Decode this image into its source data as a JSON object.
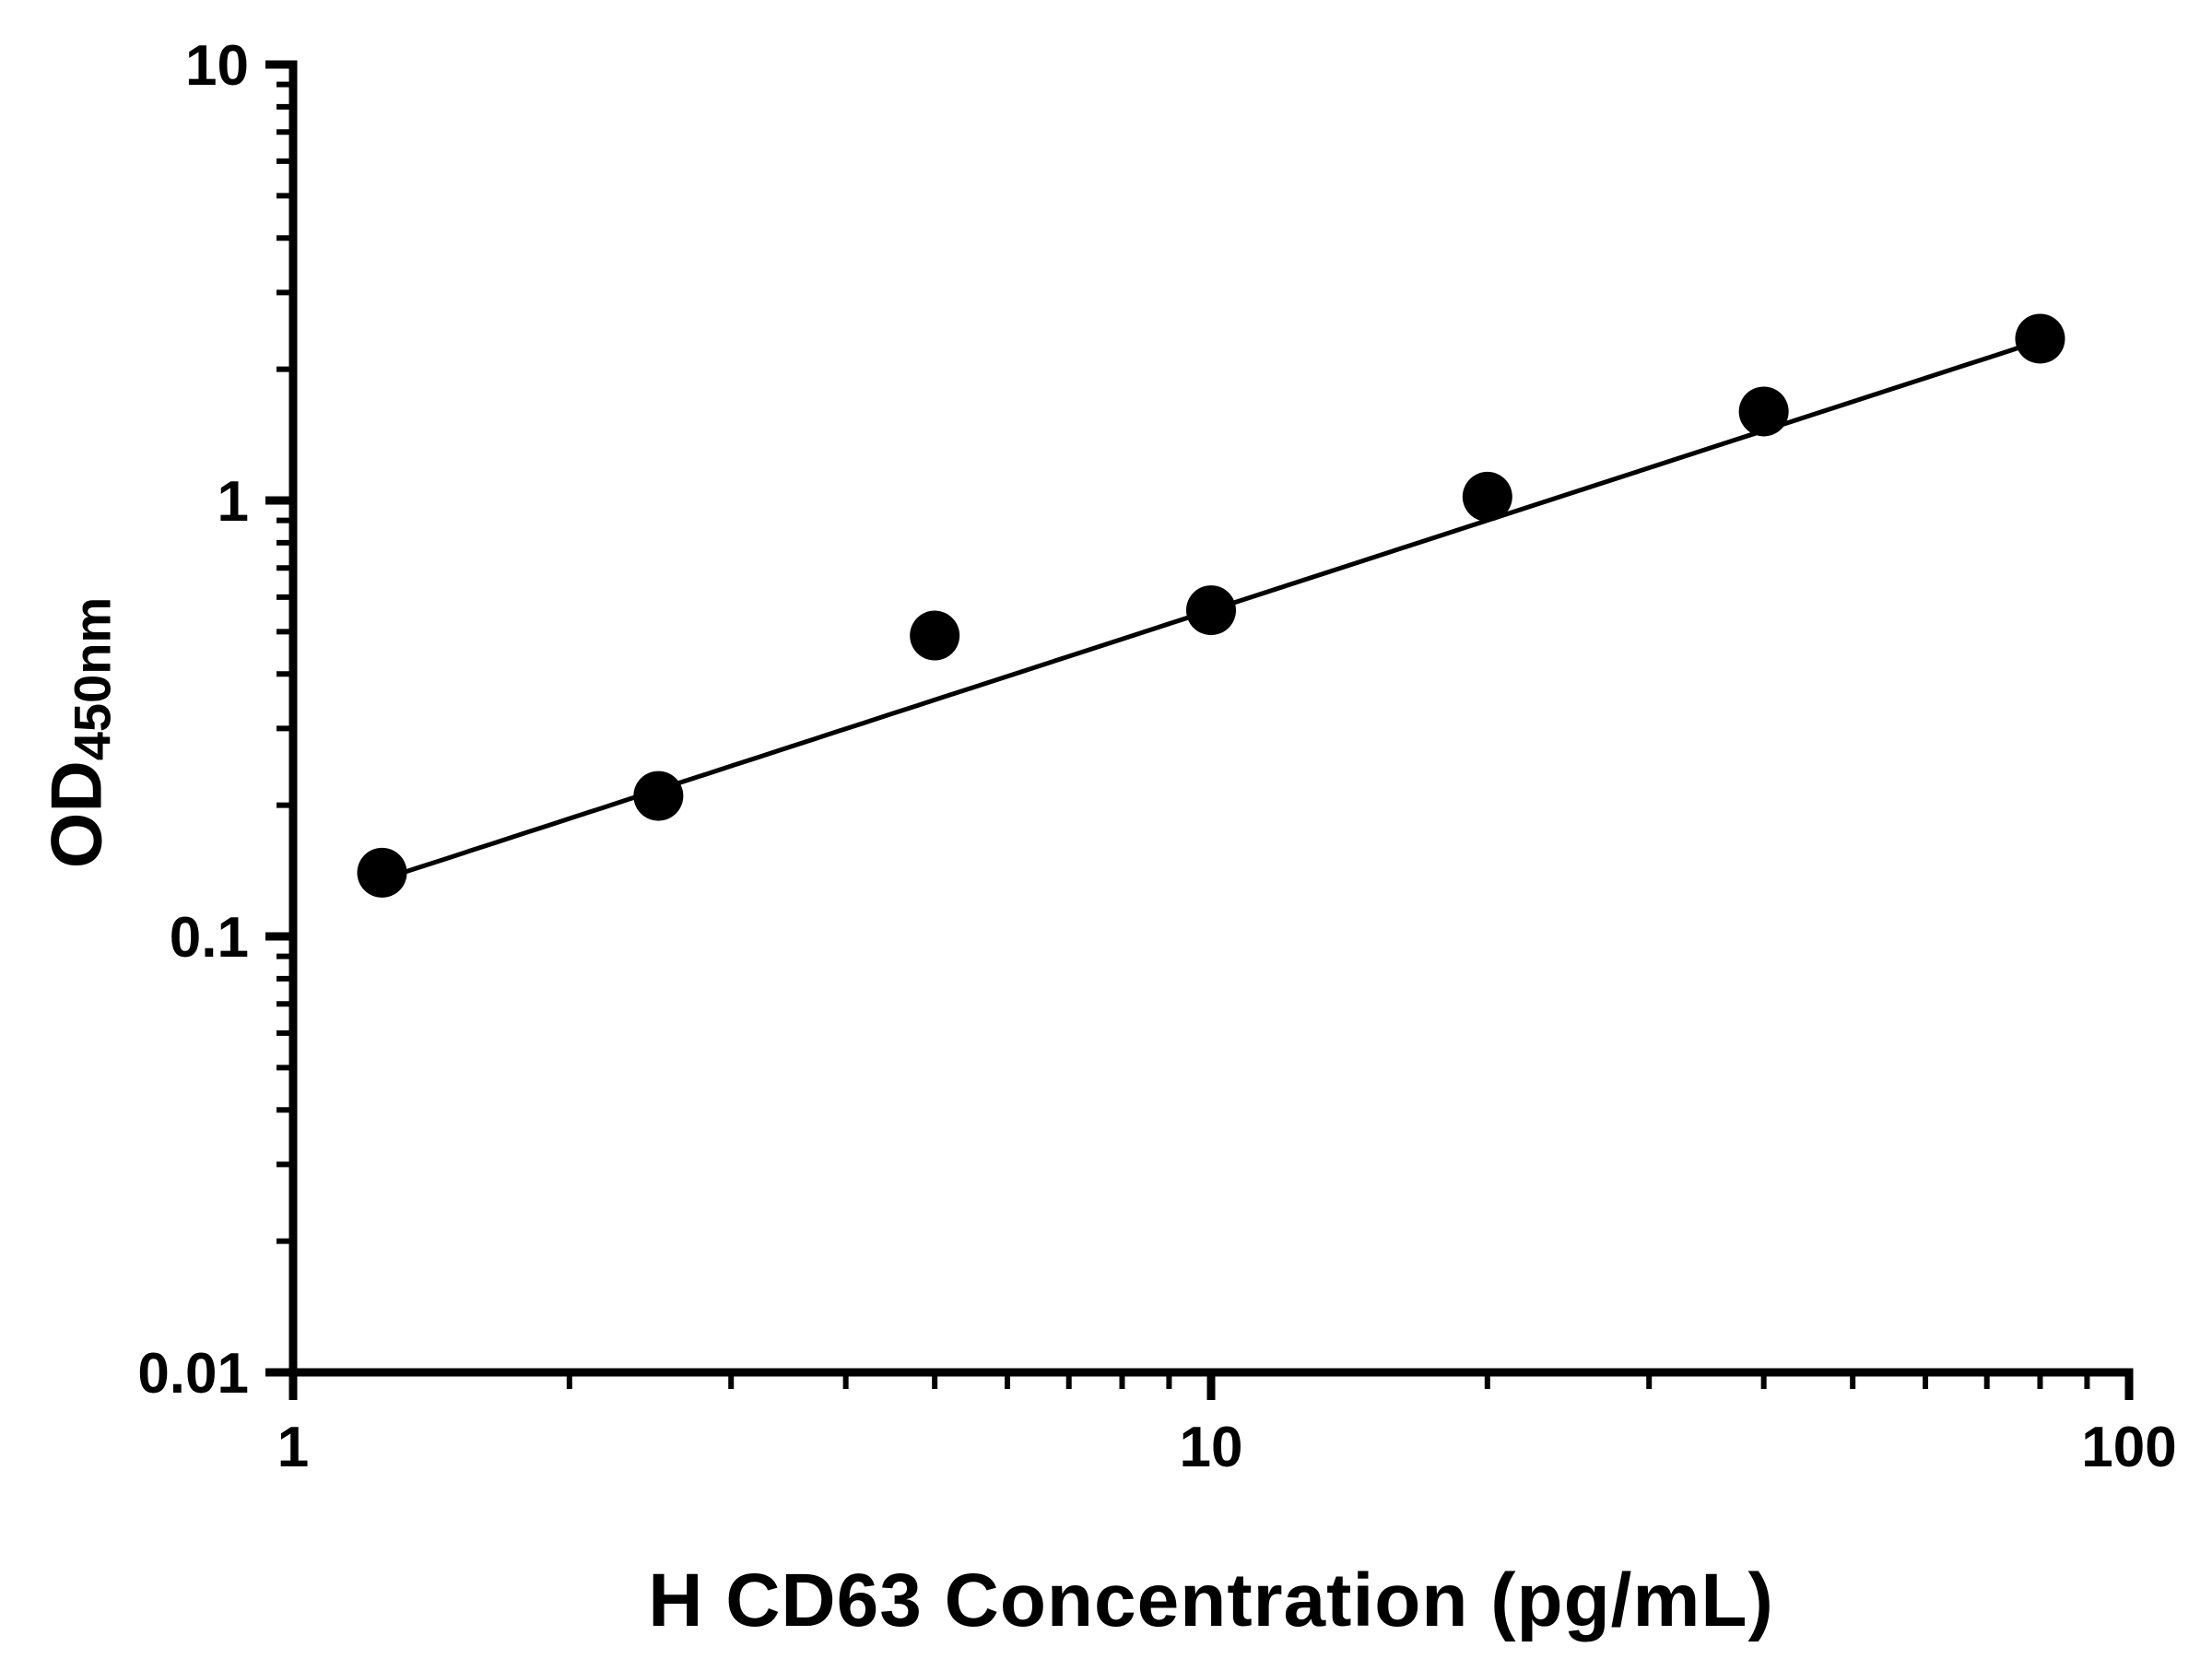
{
  "chart_data": {
    "type": "scatter",
    "title": "",
    "xlabel": "H CD63 Concentration (pg/mL)",
    "ylabel_main": "OD",
    "ylabel_sub": "450nm",
    "x_scale": "log",
    "y_scale": "log",
    "xlim": [
      1,
      100
    ],
    "ylim": [
      0.01,
      10
    ],
    "x_ticks": [
      1,
      10,
      100
    ],
    "x_tick_labels": [
      "1",
      "10",
      "100"
    ],
    "y_ticks": [
      0.01,
      0.1,
      1,
      10
    ],
    "y_tick_labels": [
      "0.01",
      "0.1",
      "1",
      "10"
    ],
    "grid": false,
    "legend": "none",
    "points": {
      "x": [
        1.25,
        2.5,
        5,
        10,
        20,
        40,
        80
      ],
      "y": [
        0.14,
        0.21,
        0.49,
        0.56,
        1.02,
        1.6,
        2.35
      ]
    },
    "fit_line": {
      "type": "power",
      "a": 0.116,
      "b": 0.684,
      "x_start": 1.2,
      "x_end": 81
    },
    "marker_color": "#000000",
    "line_color": "#000000",
    "axis_color": "#000000",
    "background_color": "#ffffff"
  }
}
